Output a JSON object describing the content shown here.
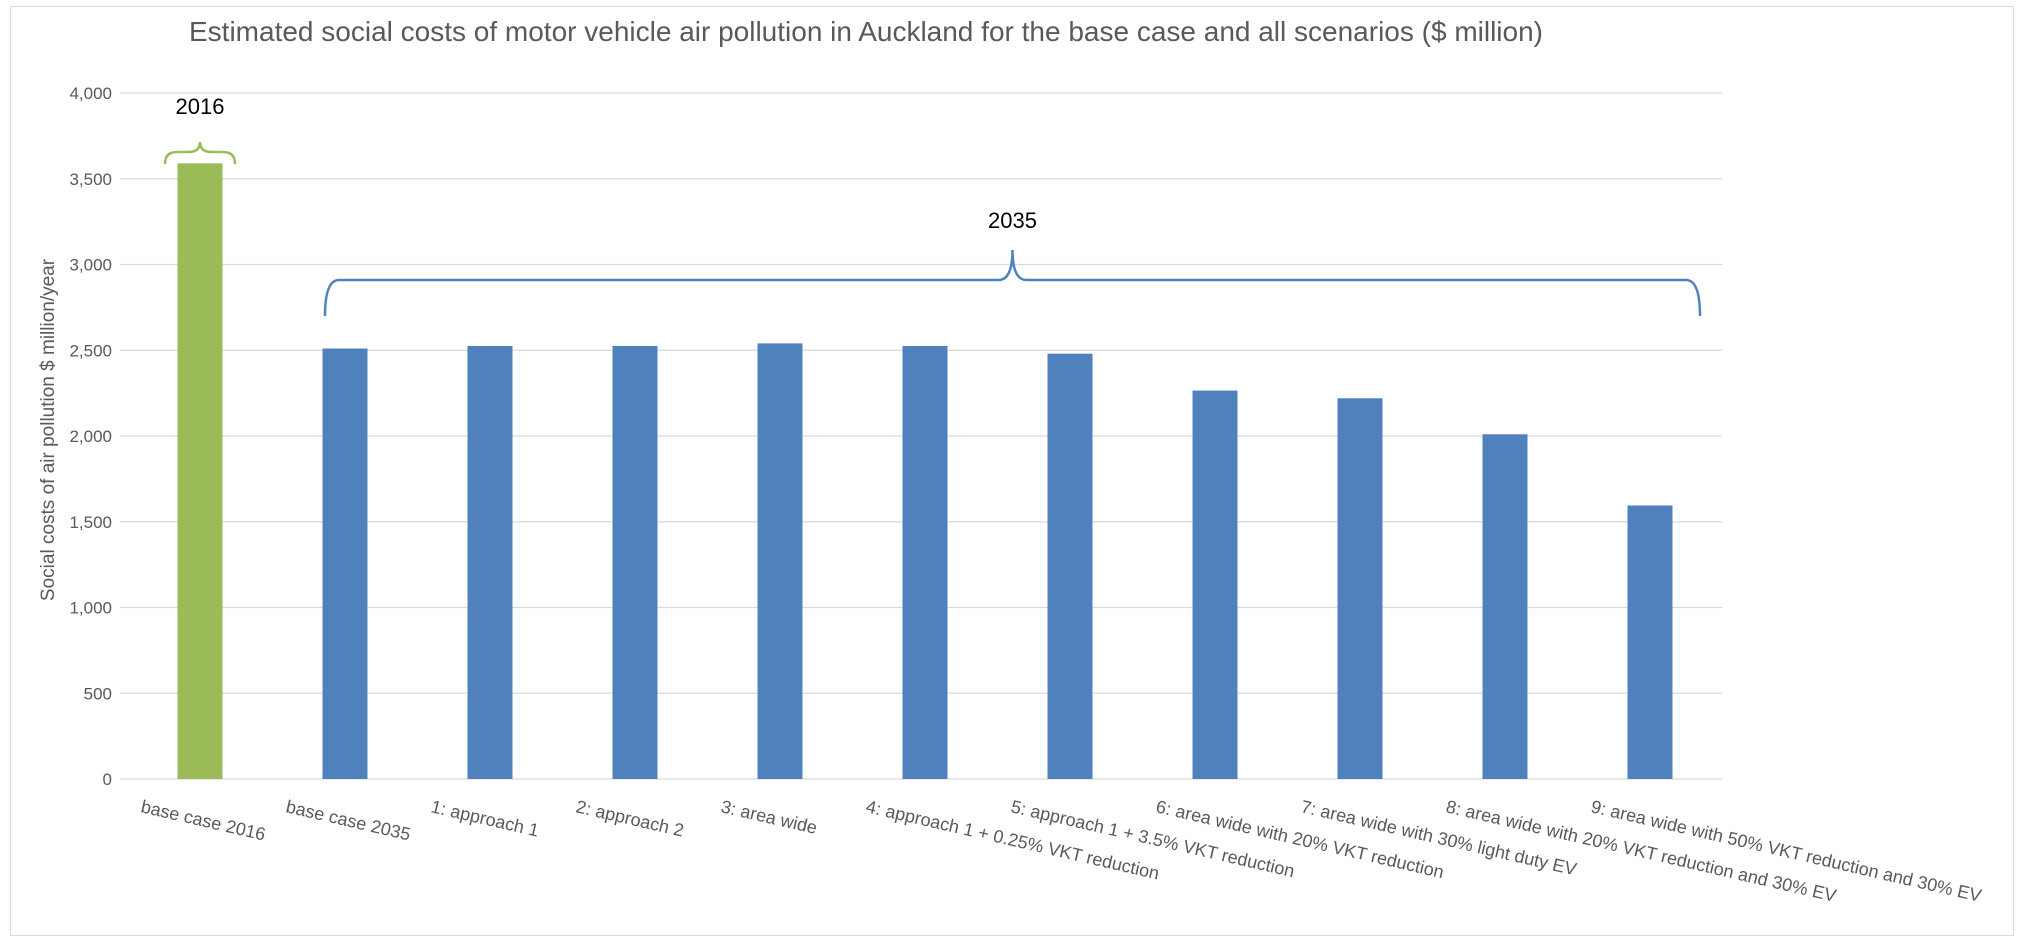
{
  "chart_data": {
    "type": "bar",
    "title": "Estimated social costs of motor vehicle air pollution in Auckland for the base case and all scenarios ($ million)",
    "xlabel": "",
    "ylabel": "Social costs of air pollution $ million/year",
    "ylim": [
      0,
      4000
    ],
    "yticks": [
      "0",
      "500",
      "1,000",
      "1,500",
      "2,000",
      "2,500",
      "3,000",
      "3,500",
      "4,000"
    ],
    "grid": true,
    "categories": [
      "base case 2016",
      "base case 2035",
      "1: approach 1",
      "2: approach 2",
      "3: area wide",
      "4: approach 1 + 0.25% VKT reduction",
      "5: approach 1 + 3.5% VKT reduction",
      "6: area wide with 20% VKT reduction",
      "7: area wide with 30% light duty EV",
      "8: area wide with 20% VKT reduction and 30% EV",
      "9: area wide with 50% VKT reduction and 30% EV"
    ],
    "values": [
      3590,
      2510,
      2525,
      2525,
      2540,
      2525,
      2480,
      2265,
      2220,
      2010,
      1595
    ],
    "bar_colors": [
      "#9bbb59",
      "#4f81bd",
      "#4f81bd",
      "#4f81bd",
      "#4f81bd",
      "#4f81bd",
      "#4f81bd",
      "#4f81bd",
      "#4f81bd",
      "#4f81bd",
      "#4f81bd"
    ],
    "annotations": [
      {
        "label": "2016",
        "covers": [
          0,
          0
        ],
        "color": "#9bbb59"
      },
      {
        "label": "2035",
        "covers": [
          1,
          10
        ],
        "color": "#4f81bd"
      }
    ]
  }
}
